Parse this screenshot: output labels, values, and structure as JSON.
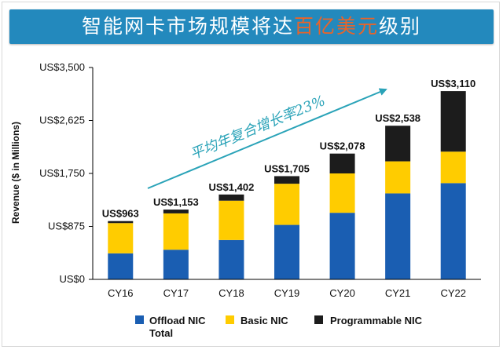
{
  "title": {
    "part1": "智能网卡市场规模将达",
    "highlight": "百亿美元",
    "part2": "级别"
  },
  "colors": {
    "offload": "#1a5eb2",
    "basic": "#ffcc00",
    "programmable": "#1c1c1c",
    "title_bg": "#2389bd",
    "highlight": "#e8642a",
    "arrow": "#2aa3b8"
  },
  "annotation": "平均年复合增长率23%",
  "chart_data": {
    "type": "bar",
    "stacked": true,
    "title": "智能网卡市场规模将达百亿美元级别",
    "ylabel": "Revenue ($ in Millions)",
    "xlabel": "",
    "ylim": [
      0,
      3500
    ],
    "yticks": [
      0,
      875,
      1750,
      2625,
      3500
    ],
    "ytick_labels": [
      "US$0",
      "US$875",
      "US$1,750",
      "US$2,625",
      "US$3,500"
    ],
    "categories": [
      "CY16",
      "CY17",
      "CY18",
      "CY19",
      "CY20",
      "CY21",
      "CY22"
    ],
    "series": [
      {
        "name": "Offload NIC",
        "values": [
          430,
          490,
          650,
          900,
          1100,
          1420,
          1590
        ]
      },
      {
        "name": "Basic NIC",
        "values": [
          500,
          600,
          650,
          680,
          650,
          530,
          520
        ]
      },
      {
        "name": "Programmable NIC",
        "values": [
          33,
          63,
          102,
          125,
          328,
          588,
          1000
        ]
      }
    ],
    "totals": [
      963,
      1153,
      1402,
      1705,
      2078,
      2538,
      3110
    ],
    "total_labels": [
      "US$963",
      "US$1,153",
      "US$1,402",
      "US$1,705",
      "US$2,078",
      "US$2,538",
      "US$3,110"
    ],
    "legend": [
      "Offload NIC",
      "Basic NIC",
      "Programmable NIC"
    ],
    "legend_extra": "Total",
    "legend_position": "bottom",
    "grid": false
  }
}
